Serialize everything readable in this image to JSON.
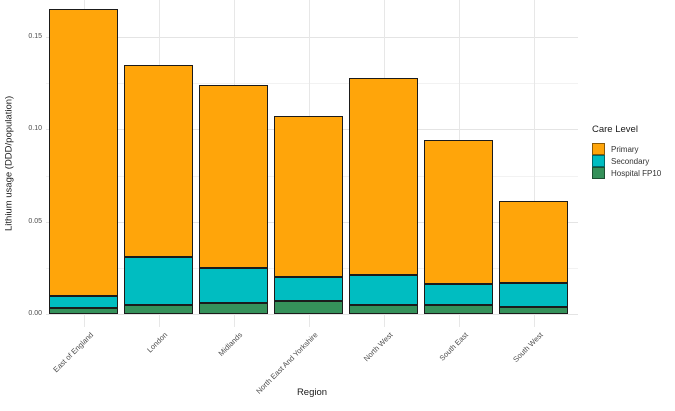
{
  "figure": {
    "background": "#ffffff"
  },
  "chart_data": {
    "type": "bar",
    "stacked": true,
    "title": "",
    "xlabel": "Region",
    "ylabel": "Lithium usage (DDD/population)",
    "categories": [
      "East of England",
      "London",
      "Midlands",
      "North East And Yorkshire",
      "North West",
      "South East",
      "South West"
    ],
    "series": [
      {
        "name": "Hospital FP10",
        "color": "#35915A",
        "values": [
          0.003,
          0.005,
          0.006,
          0.007,
          0.005,
          0.005,
          0.004
        ]
      },
      {
        "name": "Secondary",
        "color": "#00BDC1",
        "values": [
          0.007,
          0.026,
          0.019,
          0.013,
          0.016,
          0.011,
          0.013
        ]
      },
      {
        "name": "Primary",
        "color": "#FFA50A",
        "values": [
          0.155,
          0.104,
          0.099,
          0.087,
          0.107,
          0.078,
          0.044
        ]
      }
    ],
    "stack_order_bottom_to_top": [
      "Hospital FP10",
      "Secondary",
      "Primary"
    ],
    "bar_totals": [
      0.165,
      0.135,
      0.124,
      0.107,
      0.128,
      0.094,
      0.061
    ],
    "y_ticks": [
      0,
      0.05,
      0.1,
      0.15
    ],
    "y_tick_labels": [
      "0.00",
      "0.05",
      "0.10",
      "0.15"
    ],
    "y_minor_ticks": [
      0.025,
      0.075,
      0.125
    ],
    "ylim": [
      0,
      0.17
    ],
    "grid": true,
    "bar_outline_color": "#1b1b1b",
    "legend": {
      "title": "Care Level",
      "position": "right",
      "items": [
        {
          "label": "Primary",
          "color": "#FFA50A"
        },
        {
          "label": "Secondary",
          "color": "#00BDC1"
        },
        {
          "label": "Hospital FP10",
          "color": "#35915A"
        }
      ]
    }
  }
}
